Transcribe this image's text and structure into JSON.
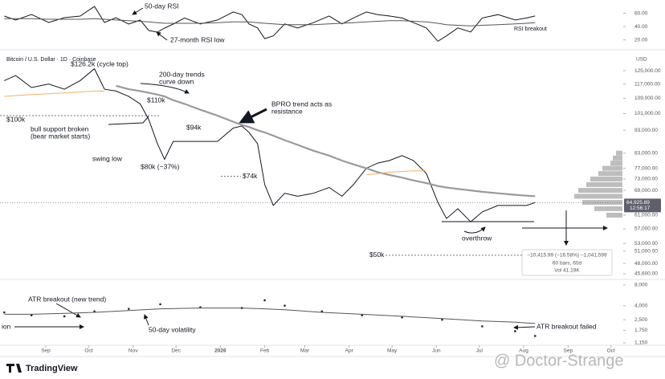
{
  "chart_data": [
    {
      "type": "line",
      "xlim": [
        -32,
        403
      ],
      "x": [
        -29,
        -21,
        -10,
        2,
        13,
        24,
        34,
        41,
        49,
        58,
        66,
        72,
        78,
        83,
        89,
        97,
        108,
        120,
        131,
        137,
        142,
        148,
        153,
        159,
        167,
        176,
        187,
        198,
        207,
        215,
        224,
        232,
        240,
        249,
        257,
        266,
        274,
        280,
        288,
        297,
        305,
        316,
        328,
        336,
        342
      ],
      "series": [
        {
          "color": "#131722",
          "values": [
            55.9,
            49.8,
            58.3,
            46.2,
            53.4,
            55.9,
            70.3,
            46.2,
            53.4,
            43.8,
            49.8,
            34.1,
            31.7,
            37.8,
            43.8,
            53,
            44,
            50,
            62,
            58,
            44,
            38,
            22,
            26,
            44,
            38,
            46,
            56,
            44,
            53,
            62,
            58,
            56,
            53,
            46,
            38,
            18,
            26,
            38,
            32,
            53,
            58,
            50,
            53,
            56
          ]
        },
        {
          "color": "#555555",
          "values": [
            52,
            52,
            52,
            51,
            51,
            51,
            52,
            51,
            50,
            49,
            48,
            47,
            46,
            45,
            45,
            45,
            45,
            46,
            47,
            47,
            47,
            46,
            45,
            44,
            43,
            43,
            43,
            44,
            45,
            46,
            47,
            48,
            49,
            49,
            48,
            47,
            45,
            43,
            42,
            41,
            42,
            43,
            44,
            45,
            46
          ]
        }
      ],
      "ylim": [
        10,
        80
      ],
      "yticks": [
        {
          "value": 60,
          "label": "60.00"
        },
        {
          "value": 40,
          "label": "40.00"
        },
        {
          "value": 20,
          "label": "20.00"
        }
      ],
      "annotations": [
        "50-day RSI",
        "27-month RSI low",
        "RSI breakout"
      ]
    },
    {
      "type": "line",
      "title": "Bitcoin / U.S. Dollar · 1D · Coinbase",
      "y_unit": "USD",
      "log_scale": true,
      "xlim": [
        -32,
        403
      ],
      "x": [
        -29,
        -21,
        -10,
        2,
        13,
        24,
        34,
        41,
        49,
        58,
        66,
        72,
        78,
        83,
        89,
        97,
        108,
        120,
        131,
        137,
        142,
        148,
        153,
        159,
        167,
        176,
        187,
        198,
        207,
        215,
        224,
        232,
        240,
        249,
        257,
        266,
        274,
        280,
        288,
        297,
        305,
        316,
        328,
        336,
        342
      ],
      "series": [
        {
          "color": "#131722",
          "values": [
            119000,
            122000,
            115000,
            117000,
            114000,
            119000,
            126200,
            114000,
            113000,
            110000,
            106000,
            98000,
            87000,
            80500,
            88000,
            88000,
            88000,
            88000,
            94000,
            95000,
            92000,
            87000,
            71000,
            64000,
            68000,
            67000,
            68000,
            70000,
            67000,
            71000,
            77000,
            79000,
            80000,
            82000,
            80000,
            75000,
            65000,
            60000,
            63000,
            59000,
            62000,
            64000,
            64000,
            64000,
            64925.89
          ]
        },
        {
          "color": "#9a9a9a",
          "values": [
            null,
            null,
            null,
            null,
            null,
            null,
            null,
            null,
            116000,
            114000,
            113000,
            112000,
            111000,
            110000,
            108000,
            106000,
            103000,
            100000,
            97000,
            95500,
            94500,
            93000,
            92000,
            90500,
            88500,
            86500,
            84000,
            82000,
            80000,
            78500,
            77000,
            75500,
            74500,
            73500,
            72500,
            71500,
            70500,
            70000,
            69500,
            69000,
            68500,
            68000,
            67500,
            67200,
            67000
          ]
        },
        {
          "color": "#f2b06a",
          "values": [
            110000,
            110500,
            111000,
            111500,
            112000,
            112500,
            113000,
            113000,
            null,
            null,
            null,
            null,
            null,
            null,
            null,
            null,
            null,
            null,
            null,
            null,
            null,
            null,
            null,
            null,
            null,
            null,
            null,
            null,
            null,
            null,
            74500,
            75000,
            75500,
            75800,
            76000,
            76000,
            null,
            null,
            null,
            null,
            null,
            null,
            null,
            null,
            null
          ]
        }
      ],
      "ylim": [
        44870,
        135400
      ],
      "yticks": [
        {
          "value": 125000,
          "label": "125,000.00"
        },
        {
          "value": 117000,
          "label": "117,000.00"
        },
        {
          "value": 109000,
          "label": "109,000.00"
        },
        {
          "value": 101000,
          "label": "101,000.00"
        },
        {
          "value": 93000,
          "label": "93,000.00"
        },
        {
          "value": 83000,
          "label": "83,000.00"
        },
        {
          "value": 77000,
          "label": "77,000.00"
        },
        {
          "value": 73000,
          "label": "73,000.00"
        },
        {
          "value": 69000,
          "label": "69,000.00"
        },
        {
          "value": 61000,
          "label": "61,000.00"
        },
        {
          "value": 57000,
          "label": "57,000.00"
        },
        {
          "value": 53000,
          "label": "53,000.00"
        },
        {
          "value": 51000,
          "label": "51,000.00"
        },
        {
          "value": 48000,
          "label": "48,000.00"
        },
        {
          "value": 45600,
          "label": "45,600.00"
        }
      ],
      "levels": [
        {
          "value": 100000,
          "label": "$100k"
        },
        {
          "value": 74000,
          "label": "$74k"
        },
        {
          "value": 50000,
          "label": "$50k"
        }
      ],
      "volume_profile": {
        "prices": [
          83000,
          81000,
          79000,
          77000,
          75000,
          73000,
          71000,
          69000,
          67000,
          65000,
          63000,
          61000
        ],
        "values": [
          8,
          12,
          15,
          25,
          30,
          40,
          45,
          55,
          60,
          50,
          35,
          20
        ]
      },
      "last_price": {
        "value": 64925.89,
        "label": "64,925.89"
      },
      "countdown": "12:56:17",
      "annotations": [
        "$126.2k (cycle top)",
        "200-day trends",
        "curve down",
        "$110k",
        "bull support broken",
        "(bear market starts)",
        "$94k",
        "BPRO trend acts as",
        "resistance",
        "swing low",
        "$80k (−37%)",
        "overthrow",
        "−10,415.99 (−16.58%) −1,041,599",
        "60 bars, 60d",
        "Vol 41.19K"
      ]
    },
    {
      "type": "line",
      "log_scale": true,
      "xlim": [
        -32,
        403
      ],
      "x": [
        -29,
        -10,
        13,
        34,
        58,
        80,
        108,
        137,
        153,
        167,
        193,
        221,
        249,
        277,
        305,
        328,
        342
      ],
      "series": [
        {
          "color": "#222222",
          "style": "dots",
          "values": [
            3200,
            2900,
            2800,
            3300,
            3600,
            4200,
            3800,
            3700,
            4800,
            4000,
            3300,
            2900,
            2700,
            2500,
            2000,
            1700,
            1450
          ]
        },
        {
          "color": "#555555",
          "values": [
            3000,
            3000,
            3100,
            3200,
            3400,
            3600,
            3700,
            3700,
            3600,
            3500,
            3200,
            3000,
            2800,
            2600,
            2400,
            2300,
            2200
          ]
        }
      ],
      "ylim": [
        1060,
        9150
      ],
      "yticks": [
        {
          "value": 8000,
          "label": "8,000"
        },
        {
          "value": 4000,
          "label": "4,000"
        },
        {
          "value": 2500,
          "label": "2,500"
        },
        {
          "value": 1750,
          "label": "1,750"
        },
        {
          "value": 1150,
          "label": "1,150"
        }
      ],
      "xticks": [
        {
          "value": 0,
          "label": "Sep"
        },
        {
          "value": 30,
          "label": "Oct"
        },
        {
          "value": 61,
          "label": "Nov"
        },
        {
          "value": 91,
          "label": "Dec"
        },
        {
          "value": 122,
          "label": "2026"
        },
        {
          "value": 153,
          "label": "Feb"
        },
        {
          "value": 181,
          "label": "Mar"
        },
        {
          "value": 212,
          "label": "Apr"
        },
        {
          "value": 242,
          "label": "May"
        },
        {
          "value": 273,
          "label": "Jun"
        },
        {
          "value": 303,
          "label": "Jul"
        },
        {
          "value": 334,
          "label": "Aug"
        },
        {
          "value": 365,
          "label": "Sep"
        },
        {
          "value": 395,
          "label": "Oct"
        }
      ],
      "annotations": [
        "ATR breakout (new trend)",
        "50-day volatility",
        "ATR breakout failed",
        "ion"
      ]
    }
  ],
  "footer": {
    "logo": "TradingView",
    "watermark": "@ Doctor-Strange"
  }
}
